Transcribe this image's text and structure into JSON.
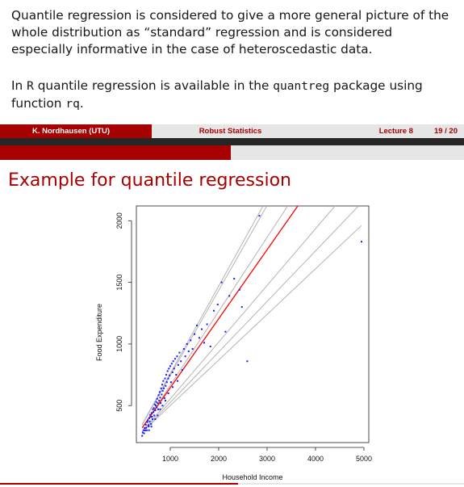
{
  "body": {
    "paragraph1": "Quantile regression is considered to give a more general picture of the whole distribution as “standard” regression and is considered especially informative in the case of heteroscedastic data.",
    "p2_in": "In",
    "p2_R": "R",
    "p2_mid": "quantile regression is available in the",
    "p2_pkg": "quantreg",
    "p2_using": "package using function",
    "p2_fn": "rq",
    "p2_end": "."
  },
  "footer": {
    "author": "K. Nordhausen (UTU)",
    "title": "Robust Statistics",
    "lecture": "Lecture 8",
    "page": "19 / 20"
  },
  "frame_title": "Example for quantile regression",
  "colors": {
    "accent": "#a60000",
    "points": "#1a1aff",
    "median_line": "#ff0000",
    "quantile_lines": "#b3b3b3"
  },
  "chart_data": {
    "type": "scatter",
    "xlabel": "Household Income",
    "ylabel": "Food Expenditure",
    "xlim": [
      300,
      5100
    ],
    "ylim": [
      200,
      2120
    ],
    "x_ticks": [
      1000,
      2000,
      3000,
      4000,
      5000
    ],
    "y_ticks": [
      500,
      1000,
      1500,
      2000
    ],
    "points": [
      [
        420,
        255
      ],
      [
        431,
        281
      ],
      [
        447,
        300
      ],
      [
        459,
        275
      ],
      [
        471,
        318
      ],
      [
        483,
        299
      ],
      [
        495,
        345
      ],
      [
        503,
        320
      ],
      [
        515,
        300
      ],
      [
        527,
        366
      ],
      [
        534,
        380
      ],
      [
        548,
        342
      ],
      [
        556,
        331
      ],
      [
        566,
        398
      ],
      [
        575,
        372
      ],
      [
        586,
        425
      ],
      [
        595,
        408
      ],
      [
        604,
        350
      ],
      [
        615,
        440
      ],
      [
        624,
        410
      ],
      [
        633,
        390
      ],
      [
        642,
        470
      ],
      [
        652,
        448
      ],
      [
        661,
        480
      ],
      [
        670,
        420
      ],
      [
        681,
        510
      ],
      [
        691,
        462
      ],
      [
        700,
        500
      ],
      [
        711,
        530
      ],
      [
        720,
        485
      ],
      [
        730,
        555
      ],
      [
        740,
        520
      ],
      [
        750,
        470
      ],
      [
        760,
        585
      ],
      [
        770,
        540
      ],
      [
        781,
        610
      ],
      [
        792,
        565
      ],
      [
        802,
        520
      ],
      [
        812,
        640
      ],
      [
        823,
        590
      ],
      [
        833,
        670
      ],
      [
        845,
        620
      ],
      [
        856,
        700
      ],
      [
        868,
        640
      ],
      [
        880,
        560
      ],
      [
        892,
        720
      ],
      [
        905,
        660
      ],
      [
        918,
        750
      ],
      [
        930,
        690
      ],
      [
        944,
        780
      ],
      [
        958,
        720
      ],
      [
        972,
        800
      ],
      [
        986,
        745
      ],
      [
        1000,
        820
      ],
      [
        1015,
        690
      ],
      [
        1030,
        840
      ],
      [
        1046,
        770
      ],
      [
        1062,
        860
      ],
      [
        1080,
        800
      ],
      [
        1100,
        880
      ],
      [
        1120,
        750
      ],
      [
        1140,
        900
      ],
      [
        1165,
        830
      ],
      [
        1190,
        930
      ],
      [
        1220,
        860
      ],
      [
        1250,
        790
      ],
      [
        1280,
        960
      ],
      [
        1310,
        900
      ],
      [
        1345,
        1000
      ],
      [
        1380,
        940
      ],
      [
        1420,
        1030
      ],
      [
        1460,
        960
      ],
      [
        1500,
        1080
      ],
      [
        1550,
        1150
      ],
      [
        1600,
        1050
      ],
      [
        1650,
        1120
      ],
      [
        1700,
        1010
      ],
      [
        1760,
        1160
      ],
      [
        1830,
        980
      ],
      [
        1900,
        1270
      ],
      [
        1980,
        1320
      ],
      [
        2060,
        1500
      ],
      [
        2140,
        1100
      ],
      [
        2220,
        1390
      ],
      [
        2320,
        1530
      ],
      [
        2430,
        1440
      ],
      [
        2480,
        1300
      ],
      [
        2590,
        860
      ],
      [
        2840,
        2040
      ],
      [
        4950,
        1830
      ],
      [
        560,
        300
      ],
      [
        610,
        330
      ],
      [
        690,
        390
      ],
      [
        740,
        420
      ],
      [
        790,
        470
      ],
      [
        840,
        500
      ],
      [
        900,
        540
      ],
      [
        960,
        600
      ],
      [
        1050,
        650
      ],
      [
        1150,
        700
      ]
    ],
    "quantile_lines": [
      {
        "tau": 0.05,
        "a": 130,
        "b": 0.37
      },
      {
        "tau": 0.1,
        "a": 115,
        "b": 0.41
      },
      {
        "tau": 0.25,
        "a": 95,
        "b": 0.46
      },
      {
        "tau": 0.75,
        "a": 65,
        "b": 0.6
      },
      {
        "tau": 0.9,
        "a": 55,
        "b": 0.69
      },
      {
        "tau": 0.95,
        "a": 50,
        "b": 0.71
      }
    ],
    "median_line": {
      "tau": 0.5,
      "a": 85,
      "b": 0.56
    }
  }
}
